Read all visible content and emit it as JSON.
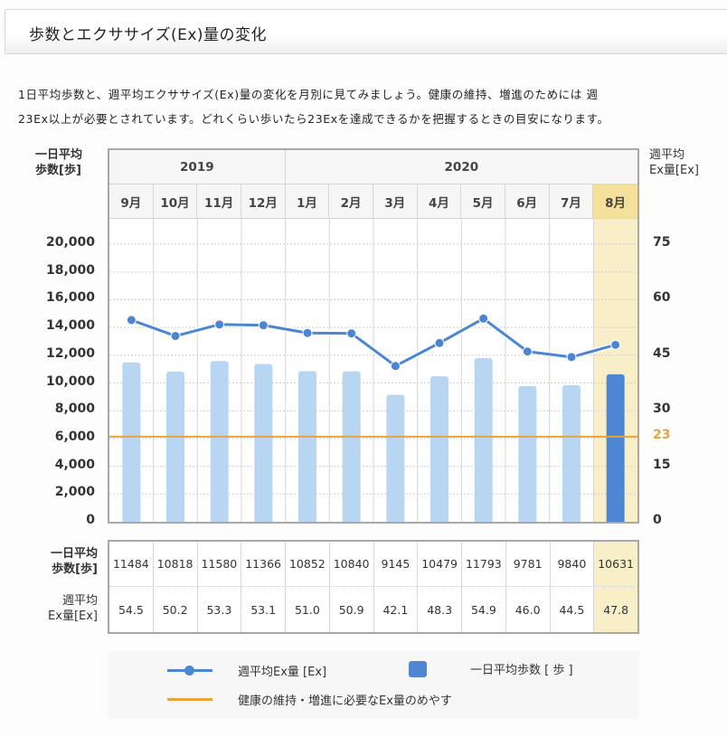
{
  "header": {
    "title": "歩数とエクササイズ(Ex)量の変化"
  },
  "intro": {
    "line1": "1日平均歩数と、週平均エクササイズ(Ex)量の変化を月別に見てみましょう。健康の維持、増進のためには 週",
    "line2": "23Ex以上が必要とされています。どれくらい歩いたら23Exを達成できるかを把握するときの目安になります。"
  },
  "axes": {
    "left_title_1": "一日平均",
    "left_title_2": "歩数[歩]",
    "right_title_1": "週平均",
    "right_title_2": "Ex量[Ex]"
  },
  "years": [
    {
      "label": "2019",
      "span": 4
    },
    {
      "label": "2020",
      "span": 8
    }
  ],
  "table": {
    "steps_label_1": "一日平均",
    "steps_label_2": "歩数[歩]",
    "ex_label_1": "週平均",
    "ex_label_2": "Ex量[Ex]",
    "steps": [
      "11484",
      "10818",
      "11580",
      "11366",
      "10852",
      "10840",
      "9145",
      "10479",
      "11793",
      "9781",
      "9840",
      "10631"
    ],
    "ex": [
      "54.5",
      "50.2",
      "53.3",
      "53.1",
      "51.0",
      "50.9",
      "42.1",
      "48.3",
      "54.9",
      "46.0",
      "44.5",
      "47.8"
    ]
  },
  "legend": {
    "line_label": "週平均Ex量 [Ex]",
    "bar_label": "一日平均歩数 [ 歩 ]",
    "target_label": "健康の維持・増進に必要なEx量のめやす"
  },
  "colors": {
    "bar": "#b8d6f2",
    "bar_highlight": "#4f86d1",
    "line": "#4a86d4",
    "target": "#e8a33a",
    "highlight_bg": "#f8efc8",
    "highlight_header": "#f4e09a"
  },
  "chart_data": {
    "type": "bar",
    "title": "歩数とエクササイズ(Ex)量の変化",
    "categories": [
      "9月",
      "10月",
      "11月",
      "12月",
      "1月",
      "2月",
      "3月",
      "4月",
      "5月",
      "6月",
      "7月",
      "8月"
    ],
    "category_groups": [
      {
        "label": "2019",
        "months": [
          "9月",
          "10月",
          "11月",
          "12月"
        ]
      },
      {
        "label": "2020",
        "months": [
          "1月",
          "2月",
          "3月",
          "4月",
          "5月",
          "6月",
          "7月",
          "8月"
        ]
      }
    ],
    "highlighted_category": "8月",
    "series": [
      {
        "name": "一日平均歩数 [歩]",
        "type": "bar",
        "axis": "left",
        "values": [
          11484,
          10818,
          11580,
          11366,
          10852,
          10840,
          9145,
          10479,
          11793,
          9781,
          9840,
          10631
        ]
      },
      {
        "name": "週平均Ex量 [Ex]",
        "type": "line",
        "axis": "right",
        "values": [
          54.5,
          50.2,
          53.3,
          53.1,
          51.0,
          50.9,
          42.1,
          48.3,
          54.9,
          46.0,
          44.5,
          47.8
        ]
      }
    ],
    "reference_lines": [
      {
        "name": "健康の維持・増進に必要なEx量のめやす",
        "axis": "right",
        "value": 23
      }
    ],
    "ylabel": "一日平均歩数[歩]",
    "ylabel_right": "週平均Ex量[Ex]",
    "ylim": [
      0,
      20000
    ],
    "ylim_right": [
      0,
      80
    ],
    "yticks": [
      "0",
      "2,000",
      "4,000",
      "6,000",
      "8,000",
      "10,000",
      "12,000",
      "14,000",
      "16,000",
      "18,000",
      "20,000"
    ],
    "yticks_right": [
      "0",
      "15",
      "23",
      "30",
      "45",
      "60",
      "75"
    ],
    "grid": true,
    "legend_position": "bottom"
  }
}
